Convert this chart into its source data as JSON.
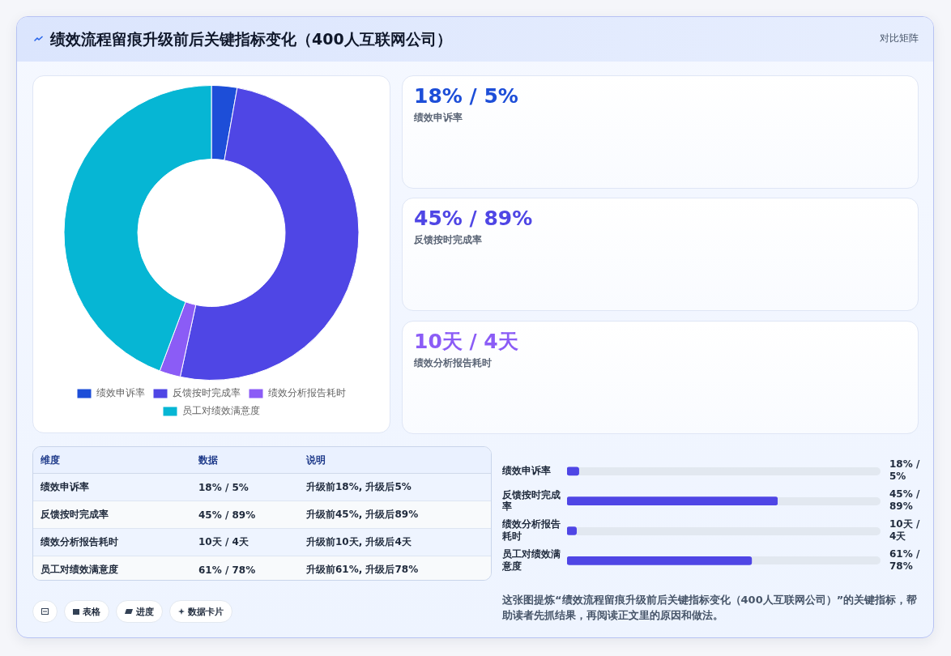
{
  "chart_data": [
    {
      "type": "donut",
      "title": "绩效流程留痕升级前后关键指标变化（400人互联网公司）",
      "annotations": [
        "对比矩阵"
      ],
      "categories": [
        "绩效申诉率",
        "反馈按时完成率",
        "绩效分析报告耗时",
        "员工对绩效满意度"
      ],
      "values": [
        2.8,
        50.6,
        2.3,
        44.3
      ],
      "colors": [
        "#1d4ed8",
        "#4f46e5",
        "#8b5cf6",
        "#06b6d4"
      ],
      "legend": "bottom"
    },
    {
      "type": "other",
      "title": "18% / 5%",
      "subtitle": "绩效申诉率",
      "color": "#1d4ed8"
    },
    {
      "type": "other",
      "title": "45% / 89%",
      "subtitle": "反馈按时完成率",
      "color": "#4f46e5"
    },
    {
      "type": "other",
      "title": "10天 / 4天",
      "subtitle": "绩效分析报告耗时",
      "color": "#8b5cf6"
    },
    {
      "type": "other",
      "categories": [
        "维度",
        "数据",
        "说明"
      ],
      "cell_labels": [
        [
          "绩效申诉率",
          "18% / 5%",
          "升级前18%, 升级后5%"
        ],
        [
          "反馈按时完成率",
          "45% / 89%",
          "升级前45%, 升级后89%"
        ],
        [
          "绩效分析报告耗时",
          "10天 / 4天",
          "升级前10天, 升级后4天"
        ],
        [
          "员工对绩效满意度",
          "61% / 78%",
          "升级前61%, 升级后78%"
        ]
      ]
    },
    {
      "type": "bar",
      "orientation": "horizontal",
      "tick_labels": "y",
      "categories": [
        "绩效申诉率",
        "反馈按时完成率",
        "绩效分析报告耗时",
        "员工对绩效满意度"
      ],
      "values": [
        5,
        89,
        4,
        78
      ],
      "value_labels": [
        "18% / 5%",
        "45% / 89%",
        "10天 / 4天",
        "61% / 78%"
      ],
      "color": "#4f46e5",
      "annotations": [
        "这张图提炼“绩效流程留痕升级前后关键指标变化（400人互联网公司）”的关键指标，帮助读者先抓结果，再阅读正文里的原因和做法。"
      ]
    },
    {
      "type": "other",
      "annotations": [
        "表格",
        "进度",
        "数据卡片"
      ]
    }
  ]
}
